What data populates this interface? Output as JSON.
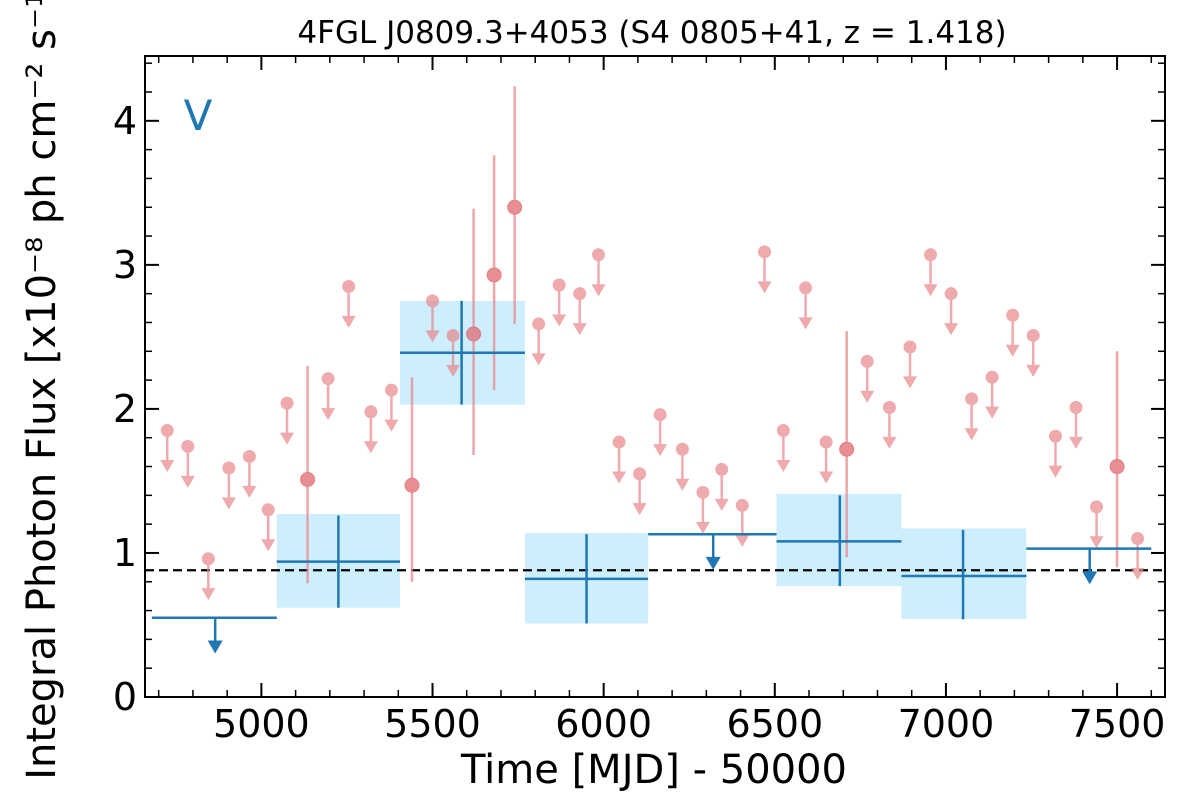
{
  "chart_data": {
    "type": "scatter",
    "title": "4FGL J0809.3+4053 (S4 0805+41, z = 1.418)",
    "xlabel": "Time [MJD] - 50000",
    "ylabel": "Integral Photon Flux [x10⁻⁸ ph cm⁻² s⁻¹]",
    "panel_label": "V",
    "xlim": [
      4660,
      7640
    ],
    "ylim": [
      0,
      4.45
    ],
    "x_ticks": [
      5000,
      5500,
      6000,
      6500,
      7000,
      7500
    ],
    "x_tick_labels": [
      "5000",
      "5500",
      "6000",
      "6500",
      "7000",
      "7500"
    ],
    "y_ticks": [
      0,
      1,
      2,
      3,
      4
    ],
    "y_tick_labels": [
      "0",
      "1",
      "2",
      "3",
      "4"
    ],
    "mean_flux": 0.88,
    "colors": {
      "fine_bins": "#e88a8e",
      "coarse_bins": "#1f77b4",
      "coarse_band": "#cdeefc",
      "mean_line": "#000000"
    },
    "series": [
      {
        "name": "",
        "kind": "fine-bin upper limits",
        "points": [
          {
            "x": 4725,
            "y": 1.85
          },
          {
            "x": 4785,
            "y": 1.74
          },
          {
            "x": 4845,
            "y": 0.96
          },
          {
            "x": 4905,
            "y": 1.59
          },
          {
            "x": 4965,
            "y": 1.67
          },
          {
            "x": 5020,
            "y": 1.3
          },
          {
            "x": 5075,
            "y": 2.04
          },
          {
            "x": 5195,
            "y": 2.21
          },
          {
            "x": 5255,
            "y": 2.85
          },
          {
            "x": 5320,
            "y": 1.98
          },
          {
            "x": 5380,
            "y": 2.13
          },
          {
            "x": 5500,
            "y": 2.75
          },
          {
            "x": 5560,
            "y": 2.51
          },
          {
            "x": 5810,
            "y": 2.59
          },
          {
            "x": 5870,
            "y": 2.86
          },
          {
            "x": 5930,
            "y": 2.8
          },
          {
            "x": 5985,
            "y": 3.07
          },
          {
            "x": 6045,
            "y": 1.77
          },
          {
            "x": 6105,
            "y": 1.55
          },
          {
            "x": 6165,
            "y": 1.96
          },
          {
            "x": 6230,
            "y": 1.72
          },
          {
            "x": 6290,
            "y": 1.42
          },
          {
            "x": 6345,
            "y": 1.58
          },
          {
            "x": 6405,
            "y": 1.33
          },
          {
            "x": 6470,
            "y": 3.09
          },
          {
            "x": 6525,
            "y": 1.85
          },
          {
            "x": 6590,
            "y": 2.84
          },
          {
            "x": 6650,
            "y": 1.77
          },
          {
            "x": 6770,
            "y": 2.33
          },
          {
            "x": 6835,
            "y": 2.01
          },
          {
            "x": 6895,
            "y": 2.43
          },
          {
            "x": 6955,
            "y": 3.07
          },
          {
            "x": 7015,
            "y": 2.8
          },
          {
            "x": 7075,
            "y": 2.07
          },
          {
            "x": 7135,
            "y": 2.22
          },
          {
            "x": 7195,
            "y": 2.65
          },
          {
            "x": 7255,
            "y": 2.51
          },
          {
            "x": 7320,
            "y": 1.81
          },
          {
            "x": 7380,
            "y": 2.01
          },
          {
            "x": 7440,
            "y": 1.32
          },
          {
            "x": 7560,
            "y": 1.1
          }
        ]
      },
      {
        "name": "",
        "kind": "fine-bin detections",
        "points": [
          {
            "x": 5135,
            "y": 1.51,
            "ylow": 0.79,
            "yhigh": 2.3
          },
          {
            "x": 5440,
            "y": 1.47,
            "ylow": 0.8,
            "yhigh": 2.22
          },
          {
            "x": 5620,
            "y": 2.52,
            "ylow": 1.68,
            "yhigh": 3.39
          },
          {
            "x": 5680,
            "y": 2.93,
            "ylow": 2.13,
            "yhigh": 3.76
          },
          {
            "x": 5740,
            "y": 3.4,
            "ylow": 2.59,
            "yhigh": 4.24
          },
          {
            "x": 6710,
            "y": 1.72,
            "ylow": 0.97,
            "yhigh": 2.54
          },
          {
            "x": 7500,
            "y": 1.6,
            "ylow": 0.9,
            "yhigh": 2.4
          }
        ]
      },
      {
        "name": "",
        "kind": "coarse-bin detections",
        "points": [
          {
            "x": 5225,
            "xlow": 5045,
            "xhigh": 5405,
            "y": 0.94,
            "ylow": 0.62,
            "yhigh": 1.26,
            "band_low": 0.62,
            "band_high": 1.27
          },
          {
            "x": 5585,
            "xlow": 5405,
            "xhigh": 5770,
            "y": 2.39,
            "ylow": 2.03,
            "yhigh": 2.75,
            "band_low": 2.03,
            "band_high": 2.75
          },
          {
            "x": 5950,
            "xlow": 5770,
            "xhigh": 6130,
            "y": 0.82,
            "ylow": 0.51,
            "yhigh": 1.13,
            "band_low": 0.51,
            "band_high": 1.14
          },
          {
            "x": 6690,
            "xlow": 6505,
            "xhigh": 6870,
            "y": 1.08,
            "ylow": 0.77,
            "yhigh": 1.4,
            "band_low": 0.77,
            "band_high": 1.41
          },
          {
            "x": 7050,
            "xlow": 6870,
            "xhigh": 7235,
            "y": 0.84,
            "ylow": 0.54,
            "yhigh": 1.16,
            "band_low": 0.54,
            "band_high": 1.17
          }
        ]
      },
      {
        "name": "",
        "kind": "coarse-bin upper limits",
        "points": [
          {
            "x": 4865,
            "xlow": 4680,
            "xhigh": 5045,
            "y": 0.55
          },
          {
            "x": 6320,
            "xlow": 6130,
            "xhigh": 6505,
            "y": 1.13
          },
          {
            "x": 7420,
            "xlow": 7235,
            "xhigh": 7600,
            "y": 1.03
          }
        ]
      }
    ]
  }
}
